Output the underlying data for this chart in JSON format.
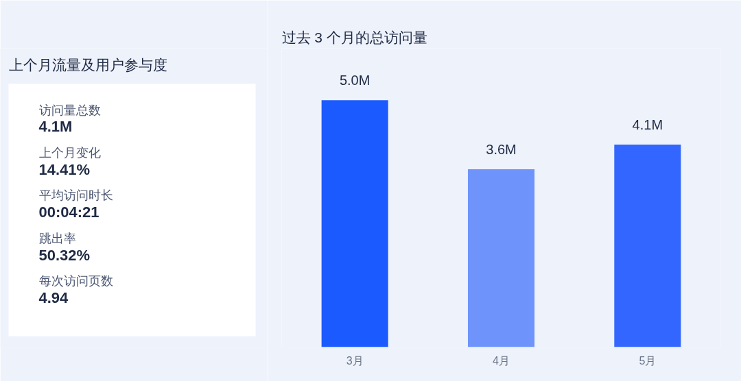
{
  "chart_data": [
    {
      "type": "other",
      "title": "上个月流量及用户参与度",
      "annotations": [
        "访问量总数",
        "4.1M",
        "上个月变化",
        "14.41%",
        "平均访问时长",
        "00:04:21",
        "跳出率",
        "50.32%",
        "每次访问页数",
        "4.94"
      ]
    },
    {
      "type": "bar",
      "title": "过去 3 个月的总访问量",
      "categories": [
        "3月",
        "4月",
        "5月"
      ],
      "values": [
        5.0,
        3.6,
        4.1
      ],
      "colors": [
        "#1a5aff",
        "#6e94fc",
        "#3366ff"
      ],
      "value_labels": [
        "5.0M",
        "3.6M",
        "4.1M"
      ]
    }
  ]
}
